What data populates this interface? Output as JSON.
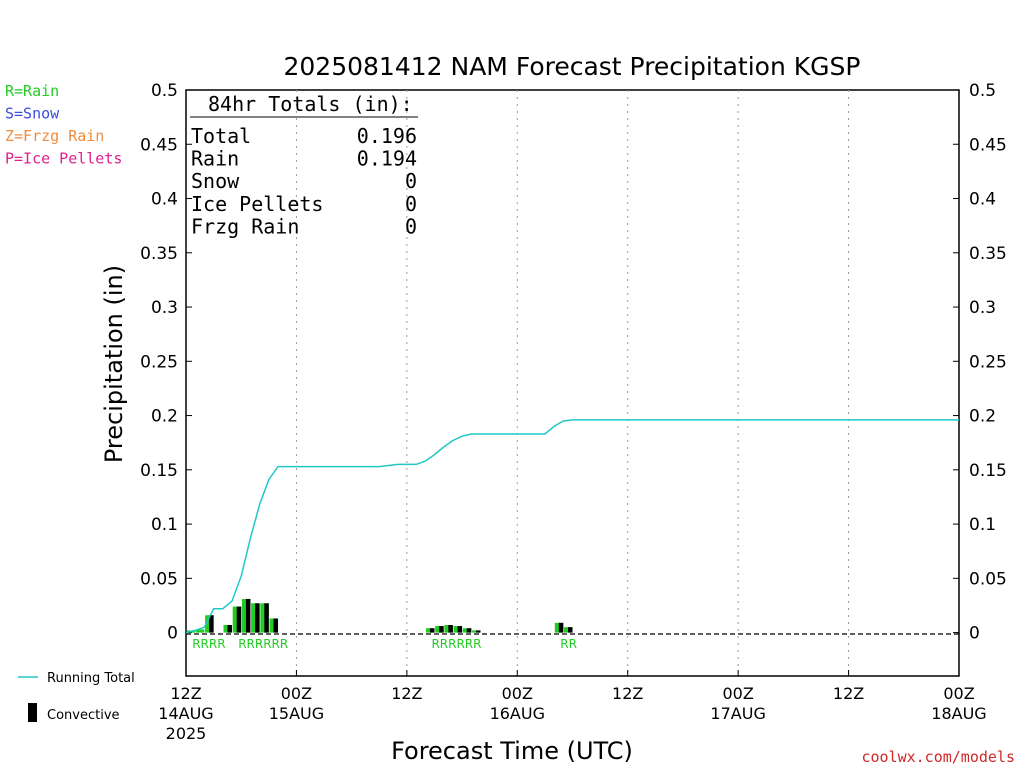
{
  "chart_data": {
    "type": "bar",
    "title": "2025081412 NAM Forecast Precipitation KGSP",
    "ylabel": "Precipitation (in)",
    "xlabel": "Forecast Time (UTC)",
    "ylim": [
      -0.04,
      0.5
    ],
    "xlim_hours": [
      0,
      84
    ],
    "yticks": [
      "0",
      "0.05",
      "0.1",
      "0.15",
      "0.2",
      "0.25",
      "0.3",
      "0.35",
      "0.4",
      "0.45",
      "0.5"
    ],
    "ytick_values": [
      0,
      0.05,
      0.1,
      0.15,
      0.2,
      0.25,
      0.3,
      0.35,
      0.4,
      0.45,
      0.5
    ],
    "x_ticks": [
      {
        "hour": 0,
        "label": "12Z",
        "date": "14AUG",
        "year": "2025"
      },
      {
        "hour": 12,
        "label": "00Z",
        "date": "15AUG",
        "year": ""
      },
      {
        "hour": 24,
        "label": "12Z",
        "date": "",
        "year": ""
      },
      {
        "hour": 36,
        "label": "00Z",
        "date": "16AUG",
        "year": ""
      },
      {
        "hour": 48,
        "label": "12Z",
        "date": "",
        "year": ""
      },
      {
        "hour": 60,
        "label": "00Z",
        "date": "17AUG",
        "year": ""
      },
      {
        "hour": 72,
        "label": "12Z",
        "date": "",
        "year": ""
      },
      {
        "hour": 84,
        "label": "00Z",
        "date": "18AUG",
        "year": ""
      }
    ],
    "running_total": {
      "name": "Running Total",
      "color": "#22c8c8",
      "hours": [
        0,
        1,
        2,
        3,
        4,
        5,
        6,
        7,
        8,
        9,
        10,
        11,
        12,
        13,
        18,
        21,
        22,
        23,
        24,
        25,
        26,
        27,
        28,
        29,
        30,
        31,
        32,
        33,
        34,
        38,
        39,
        40,
        41,
        42,
        84
      ],
      "values": [
        0,
        0.002,
        0.005,
        0.022,
        0.022,
        0.029,
        0.052,
        0.087,
        0.118,
        0.141,
        0.153,
        0.153,
        0.153,
        0.153,
        0.153,
        0.153,
        0.154,
        0.155,
        0.155,
        0.155,
        0.158,
        0.164,
        0.171,
        0.177,
        0.181,
        0.183,
        0.183,
        0.183,
        0.183,
        0.183,
        0.183,
        0.19,
        0.195,
        0.196,
        0.196
      ]
    },
    "convective": {
      "name": "Convective",
      "color": "#000000",
      "hours": [
        3,
        5,
        6,
        7,
        8,
        9,
        10,
        27,
        28,
        29,
        30,
        31,
        32,
        41,
        42
      ],
      "values": [
        0.016,
        0.007,
        0.024,
        0.031,
        0.027,
        0.027,
        0.013,
        0.004,
        0.006,
        0.007,
        0.006,
        0.004,
        0.002,
        0.009,
        0.005
      ]
    },
    "precip_bars": {
      "name": "Rain",
      "color": "#22cc22",
      "hours": [
        1,
        2,
        3,
        5,
        6,
        7,
        8,
        9,
        10,
        27,
        28,
        29,
        30,
        31,
        32,
        41,
        42
      ],
      "values": [
        0.002,
        0.003,
        0.016,
        0.007,
        0.024,
        0.031,
        0.027,
        0.027,
        0.013,
        0.004,
        0.006,
        0.007,
        0.006,
        0.004,
        0.002,
        0.009,
        0.005
      ]
    },
    "ptype_markers": [
      {
        "start_hour": 1,
        "text": "RRRR"
      },
      {
        "start_hour": 6,
        "text": "RRRRRR"
      },
      {
        "start_hour": 27,
        "text": "RRRRRR"
      },
      {
        "start_hour": 41,
        "text": "RR"
      }
    ],
    "totals_box": {
      "heading": "84hr Totals (in):",
      "rows": [
        {
          "label": "Total",
          "value": "0.196"
        },
        {
          "label": "Rain",
          "value": "0.194"
        },
        {
          "label": "Snow",
          "value": "0"
        },
        {
          "label": "Ice Pellets",
          "value": "0"
        },
        {
          "label": "Frzg Rain",
          "value": "0"
        }
      ]
    },
    "ptype_legend": [
      {
        "text": "R=Rain",
        "color": "#22cc22"
      },
      {
        "text": "S=Snow",
        "color": "#3a4cdc"
      },
      {
        "text": "Z=Frzg Rain",
        "color": "#f08c3c"
      },
      {
        "text": "P=Ice Pellets",
        "color": "#e0208c"
      }
    ],
    "legend": {
      "running_total_label": "Running Total",
      "convective_label": "Convective"
    },
    "grid": "vertical dotted at 12h",
    "credit": "coolwx.com/models",
    "credit_color": "#d02828"
  }
}
